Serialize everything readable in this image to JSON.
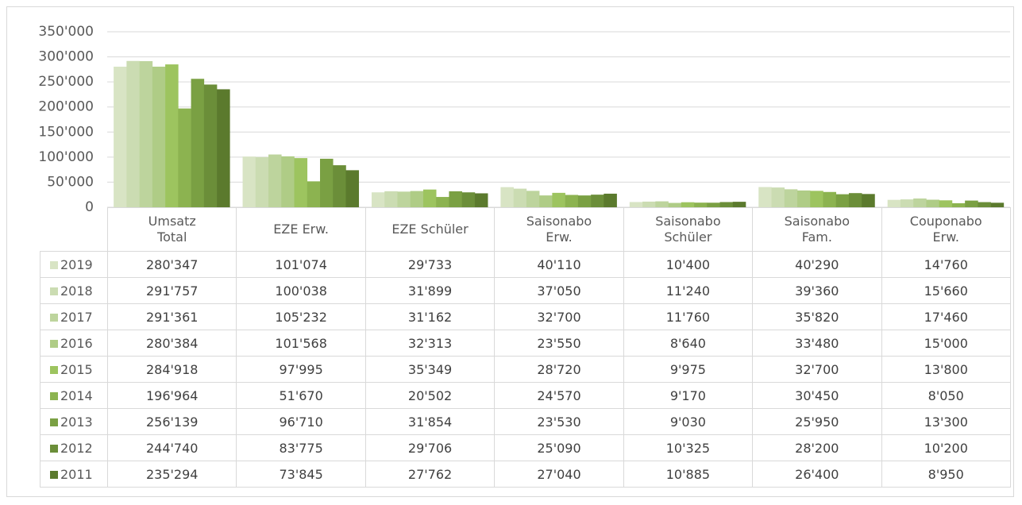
{
  "chart_data": {
    "type": "bar",
    "categories": [
      "Umsatz\nTotal",
      "EZE Erw.",
      "EZE Schüler",
      "Saisonabo\nErw.",
      "Saisonabo\nSchüler",
      "Saisonabo\nFam.",
      "Couponabo\nErw."
    ],
    "series": [
      {
        "name": "2019",
        "color": "#d8e4c4",
        "values": [
          280347,
          101074,
          29733,
          40110,
          10400,
          40290,
          14760
        ],
        "value_labels": [
          "280'347",
          "101'074",
          "29'733",
          "40'110",
          "10'400",
          "40'290",
          "14'760"
        ]
      },
      {
        "name": "2018",
        "color": "#cbdcb2",
        "values": [
          291757,
          100038,
          31899,
          37050,
          11240,
          39360,
          15660
        ],
        "value_labels": [
          "291'757",
          "100'038",
          "31'899",
          "37'050",
          "11'240",
          "39'360",
          "15'660"
        ]
      },
      {
        "name": "2017",
        "color": "#bdd49d",
        "values": [
          291361,
          105232,
          31162,
          32700,
          11760,
          35820,
          17460
        ],
        "value_labels": [
          "291'361",
          "105'232",
          "31'162",
          "32'700",
          "11'760",
          "35'820",
          "17'460"
        ]
      },
      {
        "name": "2016",
        "color": "#afcc86",
        "values": [
          280384,
          101568,
          32313,
          23550,
          8640,
          33480,
          15000
        ],
        "value_labels": [
          "280'384",
          "101'568",
          "32'313",
          "23'550",
          "8'640",
          "33'480",
          "15'000"
        ]
      },
      {
        "name": "2015",
        "color": "#9dc45f",
        "values": [
          284918,
          97995,
          35349,
          28720,
          9975,
          32700,
          13800
        ],
        "value_labels": [
          "284'918",
          "97'995",
          "35'349",
          "28'720",
          "9'975",
          "32'700",
          "13'800"
        ]
      },
      {
        "name": "2014",
        "color": "#8cb350",
        "values": [
          196964,
          51670,
          20502,
          24570,
          9170,
          30450,
          8050
        ],
        "value_labels": [
          "196'964",
          "51'670",
          "20'502",
          "24'570",
          "9'170",
          "30'450",
          "8'050"
        ]
      },
      {
        "name": "2013",
        "color": "#7aa043",
        "values": [
          256139,
          96710,
          31854,
          23530,
          9030,
          25950,
          13300
        ],
        "value_labels": [
          "256'139",
          "96'710",
          "31'854",
          "23'530",
          "9'030",
          "25'950",
          "13'300"
        ]
      },
      {
        "name": "2012",
        "color": "#6b8e39",
        "values": [
          244740,
          83775,
          29706,
          25090,
          10325,
          28200,
          10200
        ],
        "value_labels": [
          "244'740",
          "83'775",
          "29'706",
          "25'090",
          "10'325",
          "28'200",
          "10'200"
        ]
      },
      {
        "name": "2011",
        "color": "#5b7a2d",
        "values": [
          235294,
          73845,
          27762,
          27040,
          10885,
          26400,
          8950
        ],
        "value_labels": [
          "235'294",
          "73'845",
          "27'762",
          "27'040",
          "10'885",
          "26'400",
          "8'950"
        ]
      }
    ],
    "ylim": [
      0,
      350000
    ],
    "yticks": [
      0,
      {
        "value": 50000,
        "label": "50'000"
      },
      {
        "value": 100000,
        "label": "100'000"
      },
      {
        "value": 150000,
        "label": "150'000"
      },
      {
        "value": 200000,
        "label": "200'000"
      },
      {
        "value": 250000,
        "label": "250'000"
      },
      {
        "value": 300000,
        "label": "300'000"
      },
      {
        "value": 350000,
        "label": "350'000"
      }
    ],
    "grid": true
  }
}
